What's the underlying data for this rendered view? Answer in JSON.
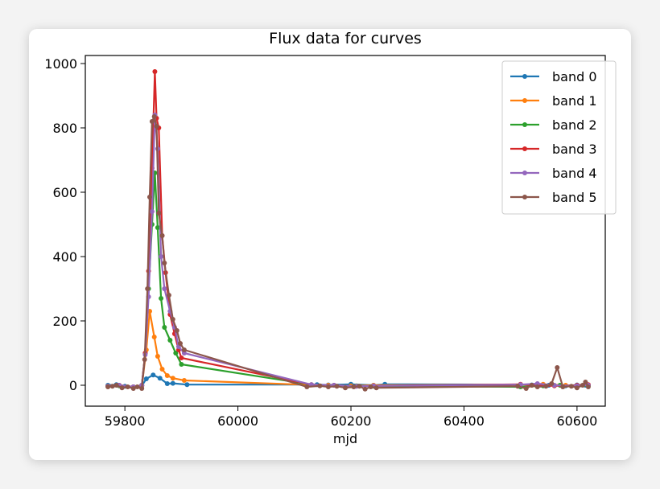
{
  "chart_data": {
    "type": "line",
    "title": "Flux data for curves",
    "xlabel": "mjd",
    "ylabel": "",
    "xlim": [
      59730,
      60650
    ],
    "ylim": [
      -65,
      1025
    ],
    "xticks": [
      59800,
      60000,
      60200,
      60400,
      60600
    ],
    "yticks": [
      0,
      200,
      400,
      600,
      800,
      1000
    ],
    "grid": false,
    "legend_position": "top-right",
    "series": [
      {
        "name": "band 0",
        "color": "#1f77b4",
        "x": [
          59770,
          59785,
          59800,
          59815,
          59830,
          59838,
          59850,
          59862,
          59875,
          59885,
          59910,
          60140,
          60160,
          60200,
          60240,
          60260,
          60500,
          60520,
          60550,
          60580,
          60600,
          60615
        ],
        "y": [
          0,
          2,
          -3,
          -5,
          -2,
          20,
          32,
          22,
          5,
          6,
          2,
          2,
          1,
          3,
          0,
          3,
          2,
          1,
          0,
          -2,
          1,
          0
        ]
      },
      {
        "name": "band 1",
        "color": "#ff7f0e",
        "x": [
          59770,
          59790,
          59815,
          59830,
          59838,
          59844,
          59852,
          59858,
          59866,
          59875,
          59885,
          59905,
          60130,
          60160,
          60200,
          60240,
          60500,
          60540,
          60580,
          60600,
          60620
        ],
        "y": [
          -3,
          0,
          -5,
          -2,
          110,
          230,
          150,
          90,
          50,
          30,
          22,
          15,
          1,
          0,
          -2,
          0,
          2,
          3,
          0,
          -2,
          1
        ]
      },
      {
        "name": "band 2",
        "color": "#2ca02c",
        "x": [
          59770,
          59790,
          59815,
          59830,
          59836,
          59842,
          59848,
          59853,
          59858,
          59864,
          59870,
          59880,
          59890,
          59900,
          60130,
          60170,
          60210,
          60240,
          60500,
          60540,
          60570,
          60600,
          60620
        ],
        "y": [
          -3,
          -2,
          -5,
          0,
          100,
          300,
          500,
          660,
          490,
          270,
          180,
          140,
          100,
          65,
          2,
          0,
          -2,
          -3,
          -5,
          -2,
          0,
          -3,
          -2
        ]
      },
      {
        "name": "band 3",
        "color": "#d62728",
        "x": [
          59770,
          59790,
          59815,
          59830,
          59836,
          59842,
          59848,
          59853,
          59856,
          59860,
          59866,
          59872,
          59880,
          59888,
          59895,
          59900,
          60130,
          60170,
          60210,
          60240,
          60500,
          60520,
          60560,
          60600,
          60620
        ],
        "y": [
          -3,
          0,
          -5,
          0,
          100,
          355,
          675,
          975,
          830,
          800,
          465,
          350,
          220,
          160,
          110,
          85,
          2,
          0,
          -3,
          -2,
          3,
          0,
          -2,
          0,
          2
        ]
      },
      {
        "name": "band 4",
        "color": "#9467bd",
        "x": [
          59770,
          59790,
          59815,
          59830,
          59836,
          59842,
          59848,
          59853,
          59858,
          59864,
          59870,
          59880,
          59888,
          59895,
          59905,
          60130,
          60170,
          60210,
          60240,
          60500,
          60530,
          60560,
          60600,
          60620
        ],
        "y": [
          -3,
          0,
          -5,
          0,
          95,
          275,
          540,
          840,
          735,
          400,
          300,
          230,
          180,
          120,
          100,
          2,
          0,
          -3,
          -2,
          2,
          5,
          0,
          -2,
          0
        ]
      },
      {
        "name": "band 5",
        "color": "#8c564b",
        "x": [
          59770,
          59778,
          59785,
          59795,
          59805,
          59815,
          59822,
          59830,
          59835,
          59840,
          59844,
          59848,
          59852,
          59856,
          59860,
          59866,
          59870,
          59878,
          59885,
          59892,
          59898,
          59905,
          60122,
          60145,
          60160,
          60175,
          60190,
          60205,
          60215,
          60225,
          60235,
          60245,
          60495,
          60510,
          60520,
          60530,
          60545,
          60555,
          60565,
          60575,
          60590,
          60600,
          60610,
          60615,
          60620
        ],
        "y": [
          -5,
          -3,
          0,
          -8,
          -5,
          -10,
          -5,
          -10,
          80,
          300,
          585,
          820,
          835,
          805,
          535,
          465,
          380,
          280,
          205,
          170,
          130,
          110,
          -5,
          -2,
          -5,
          -3,
          -8,
          -5,
          -3,
          -12,
          -5,
          -8,
          -3,
          -10,
          0,
          -5,
          -3,
          5,
          55,
          -5,
          -3,
          -8,
          0,
          10,
          -5
        ]
      }
    ]
  }
}
